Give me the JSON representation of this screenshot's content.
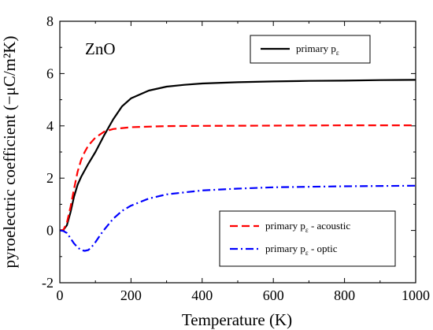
{
  "chart_data": {
    "type": "line",
    "annotation": "ZnO",
    "xlabel": "Temperature (K)",
    "ylabel": "pyroelectric coefficient (−μC/m²K)",
    "xlim": [
      0,
      1000
    ],
    "ylim": [
      -2,
      8
    ],
    "xticks": [
      0,
      200,
      400,
      600,
      800,
      1000
    ],
    "yticks": [
      -2,
      0,
      2,
      4,
      6,
      8
    ],
    "grid": false,
    "legends": [
      {
        "placement": "top-right",
        "entries": [
          0
        ]
      },
      {
        "placement": "bottom-right",
        "entries": [
          1,
          2
        ]
      }
    ],
    "series": [
      {
        "name": "primary pε",
        "label_main": "primary p",
        "label_sub": "ε",
        "label_suffix": "",
        "color": "#000000",
        "dash": "solid",
        "x": [
          0,
          10,
          20,
          30,
          40,
          50,
          60,
          80,
          100,
          125,
          150,
          175,
          200,
          250,
          300,
          350,
          400,
          500,
          600,
          700,
          800,
          900,
          1000
        ],
        "y": [
          0,
          0.02,
          0.2,
          0.7,
          1.3,
          1.75,
          2.05,
          2.55,
          3.0,
          3.65,
          4.25,
          4.75,
          5.05,
          5.35,
          5.5,
          5.57,
          5.62,
          5.67,
          5.7,
          5.72,
          5.73,
          5.75,
          5.76
        ]
      },
      {
        "name": "primary pε - acoustic",
        "label_main": "primary p",
        "label_sub": "ε",
        "label_suffix": " - acoustic",
        "color": "#ff0000",
        "dash": "dashed",
        "x": [
          0,
          10,
          20,
          30,
          40,
          50,
          60,
          70,
          80,
          100,
          125,
          150,
          200,
          300,
          400,
          600,
          800,
          1000
        ],
        "y": [
          0,
          0.02,
          0.3,
          0.9,
          1.6,
          2.25,
          2.7,
          3.0,
          3.25,
          3.55,
          3.78,
          3.88,
          3.95,
          3.99,
          4.0,
          4.01,
          4.02,
          4.02
        ]
      },
      {
        "name": "primary pε - optic",
        "label_main": "primary p",
        "label_sub": "ε",
        "label_suffix": " - optic",
        "color": "#0000ff",
        "dash": "dashdot",
        "x": [
          0,
          10,
          20,
          30,
          40,
          50,
          60,
          70,
          80,
          90,
          100,
          120,
          150,
          175,
          200,
          250,
          300,
          400,
          500,
          600,
          800,
          1000
        ],
        "y": [
          0,
          -0.02,
          -0.1,
          -0.3,
          -0.5,
          -0.65,
          -0.75,
          -0.78,
          -0.75,
          -0.62,
          -0.45,
          -0.05,
          0.45,
          0.75,
          0.95,
          1.22,
          1.38,
          1.53,
          1.6,
          1.65,
          1.69,
          1.71
        ]
      }
    ]
  }
}
